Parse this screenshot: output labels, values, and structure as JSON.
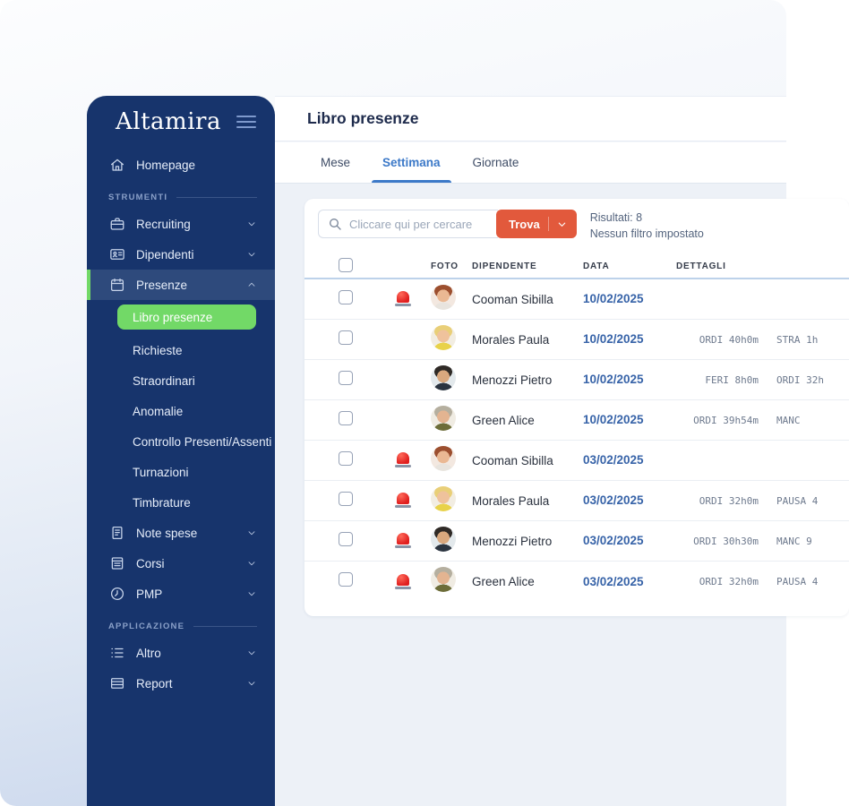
{
  "app": {
    "logo_text": "Altamira"
  },
  "sidebar": {
    "sections": [
      {
        "type": "item",
        "icon": "home",
        "label": "Homepage"
      },
      {
        "type": "section",
        "label": "STRUMENTI"
      },
      {
        "type": "item",
        "icon": "briefcase",
        "label": "Recruiting",
        "chevron": "down"
      },
      {
        "type": "item",
        "icon": "id-card",
        "label": "Dipendenti",
        "chevron": "down"
      },
      {
        "type": "item",
        "icon": "calendar",
        "label": "Presenze",
        "chevron": "up",
        "selected": true
      },
      {
        "type": "subitem",
        "label": "Libro presenze",
        "active": true
      },
      {
        "type": "subitem",
        "label": "Richieste"
      },
      {
        "type": "subitem",
        "label": "Straordinari"
      },
      {
        "type": "subitem",
        "label": "Anomalie"
      },
      {
        "type": "subitem",
        "label": "Controllo Presenti/Assenti"
      },
      {
        "type": "subitem",
        "label": "Turnazioni"
      },
      {
        "type": "subitem",
        "label": "Timbrature"
      },
      {
        "type": "item",
        "icon": "receipt",
        "label": "Note spese",
        "chevron": "down"
      },
      {
        "type": "item",
        "icon": "book",
        "label": "Corsi",
        "chevron": "down"
      },
      {
        "type": "item",
        "icon": "clock",
        "label": "PMP",
        "chevron": "down"
      },
      {
        "type": "section",
        "label": "APPLICAZIONE"
      },
      {
        "type": "item",
        "icon": "list",
        "label": "Altro",
        "chevron": "down"
      },
      {
        "type": "item",
        "icon": "report",
        "label": "Report",
        "chevron": "down"
      }
    ]
  },
  "header": {
    "title": "Libro presenze"
  },
  "tabs": [
    {
      "label": "Mese",
      "active": false
    },
    {
      "label": "Settimana",
      "active": true
    },
    {
      "label": "Giornate",
      "active": false
    }
  ],
  "search": {
    "placeholder": "Cliccare qui per cercare",
    "button_label": "Trova"
  },
  "results": {
    "count": "Risultati: 8",
    "filter": "Nessun filtro impostato"
  },
  "table": {
    "columns": [
      "FOTO",
      "DIPENDENTE",
      "DATA",
      "DETTAGLI"
    ],
    "rows": [
      {
        "alert": true,
        "name": "Cooman Sibilla",
        "date": "10/02/2025",
        "details": [],
        "avatar": {
          "bg": "#f3e8e0",
          "hair": "#9c4f2f",
          "skin": "#eab893",
          "top": "#e8e4de"
        }
      },
      {
        "alert": false,
        "name": "Morales Paula",
        "date": "10/02/2025",
        "details": [
          "ORDI 40h0m",
          "STRA 1h"
        ],
        "avatar": {
          "bg": "#f2ede2",
          "hair": "#e9cf78",
          "skin": "#efc29c",
          "top": "#e8d24a"
        }
      },
      {
        "alert": false,
        "name": "Menozzi Pietro",
        "date": "10/02/2025",
        "details": [
          "FERI 8h0m",
          "ORDI 32h"
        ],
        "avatar": {
          "bg": "#e3e9ec",
          "hair": "#2f2a26",
          "skin": "#d9a87e",
          "top": "#2b3440"
        }
      },
      {
        "alert": false,
        "name": "Green Alice",
        "date": "10/02/2025",
        "details": [
          "ORDI 39h54m",
          "MANC"
        ],
        "avatar": {
          "bg": "#f0ece3",
          "hair": "#b5af9f",
          "skin": "#e3b491",
          "top": "#6d6d39"
        }
      },
      {
        "alert": true,
        "name": "Cooman Sibilla",
        "date": "03/02/2025",
        "details": [],
        "avatar": {
          "bg": "#f3e8e0",
          "hair": "#9c4f2f",
          "skin": "#eab893",
          "top": "#e8e4de"
        }
      },
      {
        "alert": true,
        "name": "Morales Paula",
        "date": "03/02/2025",
        "details": [
          "ORDI 32h0m",
          "PAUSA 4"
        ],
        "avatar": {
          "bg": "#f2ede2",
          "hair": "#e9cf78",
          "skin": "#efc29c",
          "top": "#e8d24a"
        }
      },
      {
        "alert": true,
        "name": "Menozzi Pietro",
        "date": "03/02/2025",
        "details": [
          "ORDI 30h30m",
          "MANC 9"
        ],
        "avatar": {
          "bg": "#e3e9ec",
          "hair": "#2f2a26",
          "skin": "#d9a87e",
          "top": "#2b3440"
        }
      },
      {
        "alert": true,
        "name": "Green Alice",
        "date": "03/02/2025",
        "details": [
          "ORDI 32h0m",
          "PAUSA 4"
        ],
        "avatar": {
          "bg": "#f0ece3",
          "hair": "#b5af9f",
          "skin": "#e3b491",
          "top": "#6d6d39"
        }
      }
    ]
  },
  "colors": {
    "sidebar_navy": "#17346C",
    "accent_green": "#72D967",
    "accent_orange": "#E2593C",
    "link_blue": "#3763A8",
    "tab_active_blue": "#3C79C8",
    "alert_red": "#E02020"
  }
}
